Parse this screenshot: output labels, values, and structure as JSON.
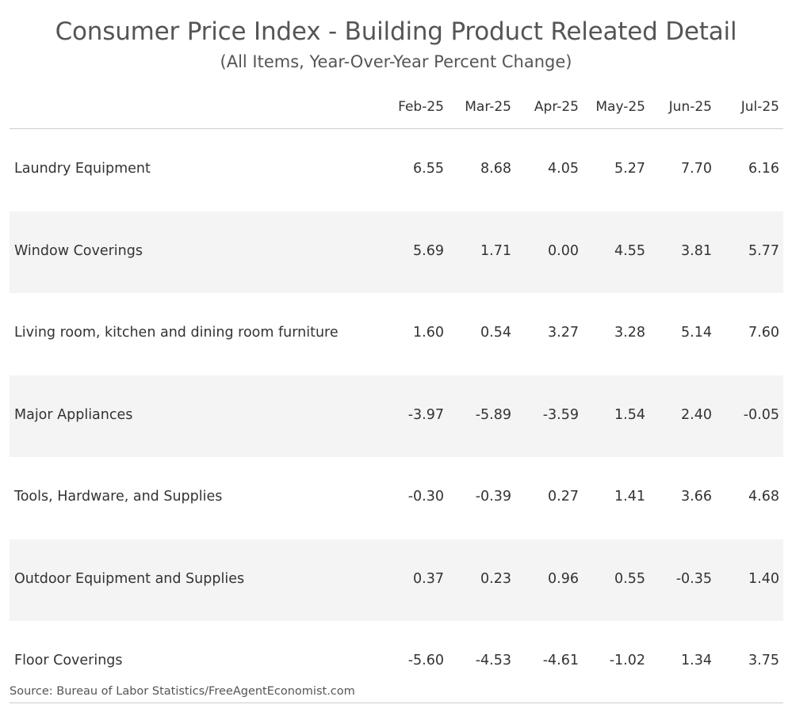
{
  "chart_data": {
    "type": "table",
    "title": "Consumer Price Index - Building Product Releated Detail",
    "subtitle": "(All Items, Year-Over-Year Percent Change)",
    "columns": [
      "Feb-25",
      "Mar-25",
      "Apr-25",
      "May-25",
      "Jun-25",
      "Jul-25"
    ],
    "rows": [
      {
        "label": "Laundry Equipment",
        "values": [
          "6.55",
          "8.68",
          "4.05",
          "5.27",
          "7.70",
          "6.16"
        ]
      },
      {
        "label": "Window Coverings",
        "values": [
          "5.69",
          "1.71",
          "0.00",
          "4.55",
          "3.81",
          "5.77"
        ]
      },
      {
        "label": "Living room, kitchen and dining room furniture",
        "values": [
          "1.60",
          "0.54",
          "3.27",
          "3.28",
          "5.14",
          "7.60"
        ]
      },
      {
        "label": "Major Appliances",
        "values": [
          "-3.97",
          "-5.89",
          "-3.59",
          "1.54",
          "2.40",
          "-0.05"
        ]
      },
      {
        "label": "Tools, Hardware, and Supplies",
        "values": [
          "-0.30",
          "-0.39",
          "0.27",
          "1.41",
          "3.66",
          "4.68"
        ]
      },
      {
        "label": "Outdoor Equipment and Supplies",
        "values": [
          "0.37",
          "0.23",
          "0.96",
          "0.55",
          "-0.35",
          "1.40"
        ]
      },
      {
        "label": "Floor Coverings",
        "values": [
          "-5.60",
          "-4.53",
          "-4.61",
          "-1.02",
          "1.34",
          "3.75"
        ]
      }
    ],
    "source": "Source: Bureau of Labor Statistics/FreeAgentEconomist.com"
  }
}
